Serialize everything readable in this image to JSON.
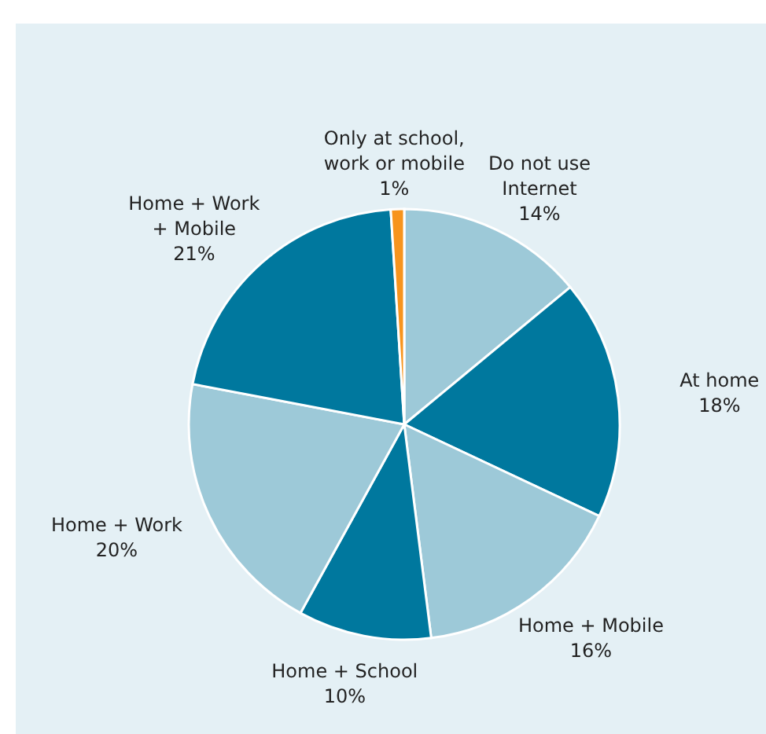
{
  "chart_data": {
    "type": "pie",
    "categories": [
      "Do not use\nInternet",
      "At home",
      "Home + Mobile",
      "Home + School",
      "Home + Work",
      "Home + Work\n+ Mobile",
      "Only at school,\nwork or mobile"
    ],
    "values": [
      14,
      18,
      16,
      10,
      20,
      21,
      1
    ],
    "colors": [
      "#9dc9d8",
      "#00789e",
      "#9dc9d8",
      "#00789e",
      "#9dc9d8",
      "#00789e",
      "#f7941d"
    ],
    "value_labels": [
      "14%",
      "18%",
      "16%",
      "10%",
      "20%",
      "21%",
      "1%"
    ]
  }
}
